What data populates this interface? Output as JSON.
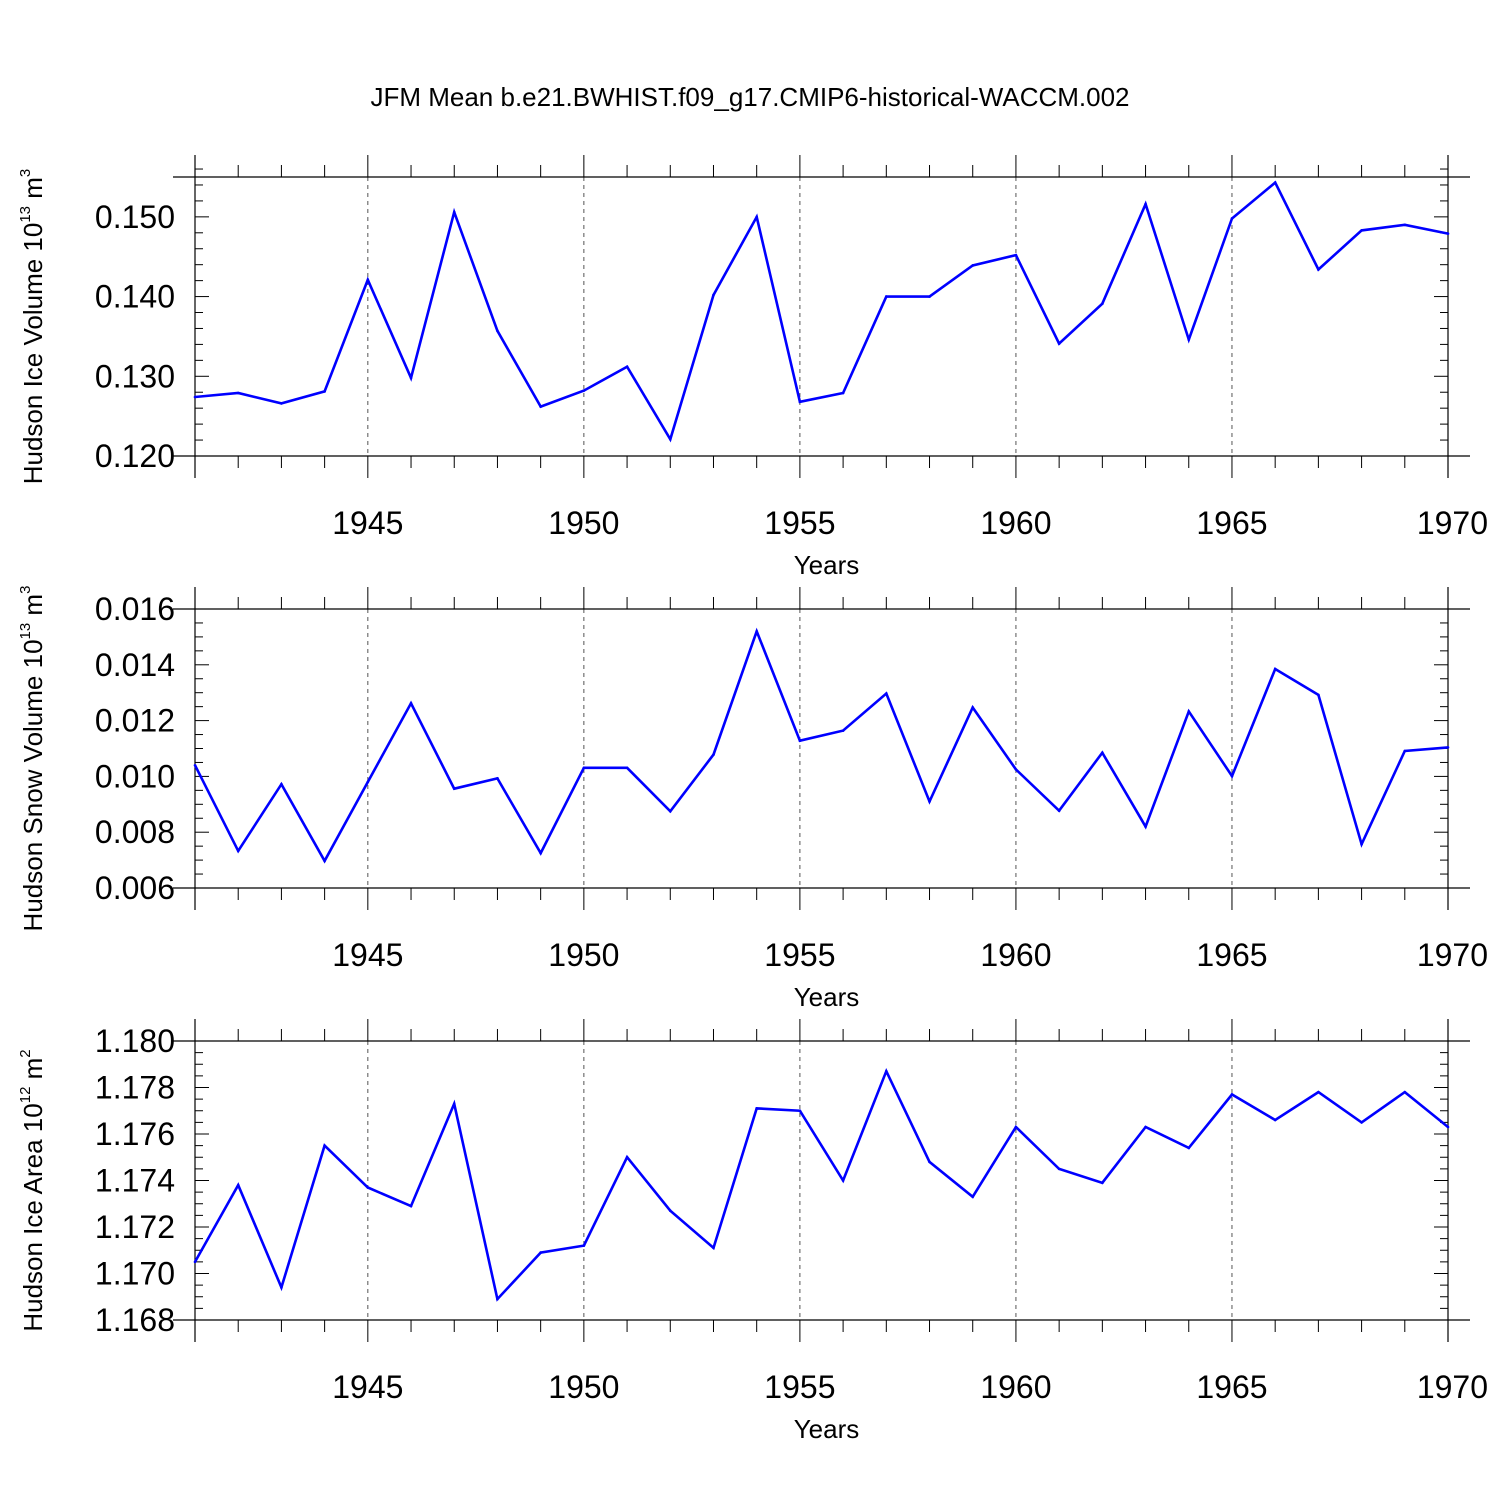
{
  "title": "JFM Mean b.e21.BWHIST.f09_g17.CMIP6-historical-WACCM.002",
  "line_color": "#0000ff",
  "chart_data": [
    {
      "type": "line",
      "title": "JFM Mean b.e21.BWHIST.f09_g17.CMIP6-historical-WACCM.002",
      "xlabel": "Years",
      "ylabel": {
        "text": "Hudson Ice Volume 10",
        "exp": "13",
        "unit_space": " m",
        "unit_exp": "3"
      },
      "x": [
        1941,
        1942,
        1943,
        1944,
        1945,
        1946,
        1947,
        1948,
        1949,
        1950,
        1951,
        1952,
        1953,
        1954,
        1955,
        1956,
        1957,
        1958,
        1959,
        1960,
        1961,
        1962,
        1963,
        1964,
        1965,
        1966,
        1967,
        1968,
        1969,
        1970
      ],
      "series": [
        {
          "name": "Hudson Ice Volume",
          "values": [
            0.1274,
            0.1279,
            0.1266,
            0.1281,
            0.1421,
            0.1298,
            0.1506,
            0.1357,
            0.1262,
            0.1282,
            0.1312,
            0.1221,
            0.1402,
            0.15,
            0.1268,
            0.1279,
            0.14,
            0.14,
            0.1439,
            0.1452,
            0.1341,
            0.1391,
            0.1516,
            0.1346,
            0.1498,
            0.1543,
            0.1434,
            0.1483,
            0.149,
            0.1479
          ]
        }
      ],
      "xlim": [
        1941,
        1970
      ],
      "ylim": [
        0.12,
        0.155
      ],
      "xticks": [
        1945,
        1950,
        1955,
        1960,
        1965,
        1970
      ],
      "xtick_labels": [
        "1945",
        "1950",
        "1955",
        "1960",
        "1965",
        "1970"
      ],
      "yticks": [
        0.12,
        0.13,
        0.14,
        0.15
      ],
      "ytick_labels": [
        "0.120",
        "0.130",
        "0.140",
        "0.150"
      ],
      "y_minor_step": 0.002,
      "grid": "dashed vertical at major x ticks"
    },
    {
      "type": "line",
      "xlabel": "Years",
      "ylabel": {
        "text": "Hudson Snow Volume 10",
        "exp": "13",
        "unit_space": " m",
        "unit_exp": "3"
      },
      "x": [
        1941,
        1942,
        1943,
        1944,
        1945,
        1946,
        1947,
        1948,
        1949,
        1950,
        1951,
        1952,
        1953,
        1954,
        1955,
        1956,
        1957,
        1958,
        1959,
        1960,
        1961,
        1962,
        1963,
        1964,
        1965,
        1966,
        1967,
        1968,
        1969,
        1970
      ],
      "series": [
        {
          "name": "Hudson Snow Volume",
          "values": [
            0.0104,
            0.00733,
            0.00972,
            0.00697,
            0.0098,
            0.01262,
            0.00956,
            0.00993,
            0.00725,
            0.01031,
            0.01031,
            0.00875,
            0.01078,
            0.0152,
            0.01128,
            0.01164,
            0.01297,
            0.0091,
            0.01247,
            0.01025,
            0.00877,
            0.01085,
            0.0082,
            0.01233,
            0.01001,
            0.01385,
            0.01292,
            0.00757,
            0.01091,
            0.01104
          ]
        }
      ],
      "xlim": [
        1941,
        1970
      ],
      "ylim": [
        0.006,
        0.016
      ],
      "xticks": [
        1945,
        1950,
        1955,
        1960,
        1965,
        1970
      ],
      "xtick_labels": [
        "1945",
        "1950",
        "1955",
        "1960",
        "1965",
        "1970"
      ],
      "yticks": [
        0.006,
        0.008,
        0.01,
        0.012,
        0.014,
        0.016
      ],
      "ytick_labels": [
        "0.006",
        "0.008",
        "0.010",
        "0.012",
        "0.014",
        "0.016"
      ],
      "y_minor_step": 0.0005,
      "grid": "dashed vertical at major x ticks"
    },
    {
      "type": "line",
      "xlabel": "Years",
      "ylabel": {
        "text": "Hudson Ice Area 10",
        "exp": "12",
        "unit_space": " m",
        "unit_exp": "2"
      },
      "x": [
        1941,
        1942,
        1943,
        1944,
        1945,
        1946,
        1947,
        1948,
        1949,
        1950,
        1951,
        1952,
        1953,
        1954,
        1955,
        1956,
        1957,
        1958,
        1959,
        1960,
        1961,
        1962,
        1963,
        1964,
        1965,
        1966,
        1967,
        1968,
        1969,
        1970
      ],
      "series": [
        {
          "name": "Hudson Ice Area",
          "values": [
            1.1705,
            1.1738,
            1.1694,
            1.1755,
            1.1737,
            1.1729,
            1.1773,
            1.1689,
            1.1709,
            1.1712,
            1.175,
            1.1727,
            1.1711,
            1.1771,
            1.177,
            1.174,
            1.1787,
            1.1748,
            1.1733,
            1.1763,
            1.1745,
            1.1739,
            1.1763,
            1.1754,
            1.1777,
            1.1766,
            1.1778,
            1.1765,
            1.1778,
            1.1763
          ]
        }
      ],
      "xlim": [
        1941,
        1970
      ],
      "ylim": [
        1.168,
        1.18
      ],
      "xticks": [
        1945,
        1950,
        1955,
        1960,
        1965,
        1970
      ],
      "xtick_labels": [
        "1945",
        "1950",
        "1955",
        "1960",
        "1965",
        "1970"
      ],
      "yticks": [
        1.168,
        1.17,
        1.172,
        1.174,
        1.176,
        1.178,
        1.18
      ],
      "ytick_labels": [
        "1.168",
        "1.170",
        "1.172",
        "1.174",
        "1.176",
        "1.178",
        "1.180"
      ],
      "y_minor_step": 0.0005,
      "grid": "dashed vertical at major x ticks"
    }
  ]
}
